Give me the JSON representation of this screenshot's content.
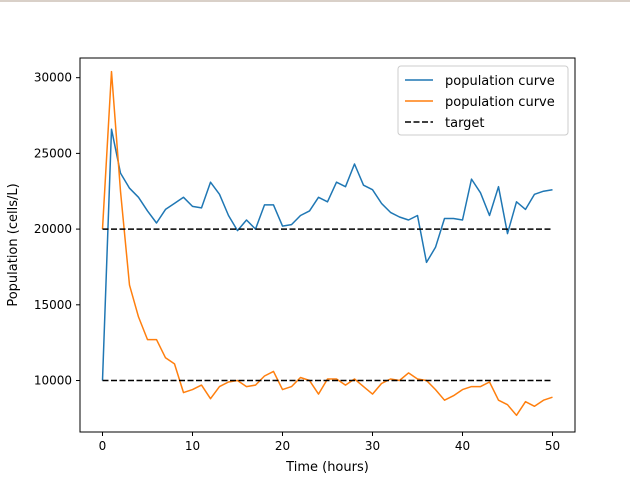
{
  "chart_data": {
    "type": "line",
    "xlabel": "Time (hours)",
    "ylabel": "Population (cells/L)",
    "xlim": [
      -2.5,
      52.5
    ],
    "ylim": [
      6600,
      31300
    ],
    "xticks": [
      0,
      10,
      20,
      30,
      40,
      50
    ],
    "xtick_labels": [
      "0",
      "10",
      "20",
      "30",
      "40",
      "50"
    ],
    "yticks": [
      10000,
      15000,
      20000,
      25000,
      30000
    ],
    "ytick_labels": [
      "10000",
      "15000",
      "20000",
      "25000",
      "30000"
    ],
    "grid": false,
    "legend": "top-right",
    "series": [
      {
        "name": "population curve",
        "color": "#1f77b4",
        "style": "solid",
        "x": [
          0,
          1,
          2,
          3,
          4,
          5,
          6,
          7,
          8,
          9,
          10,
          11,
          12,
          13,
          14,
          15,
          16,
          17,
          18,
          19,
          20,
          21,
          22,
          23,
          24,
          25,
          26,
          27,
          28,
          29,
          30,
          31,
          32,
          33,
          34,
          35,
          36,
          37,
          38,
          39,
          40,
          41,
          42,
          43,
          44,
          45,
          46,
          47,
          48,
          49,
          50
        ],
        "y": [
          10000,
          26600,
          23700,
          22700,
          22100,
          21200,
          20400,
          21300,
          21700,
          22100,
          21500,
          21400,
          23100,
          22300,
          20900,
          19900,
          20600,
          20000,
          21600,
          21600,
          20200,
          20300,
          20900,
          21200,
          22100,
          21800,
          23100,
          22800,
          24300,
          22900,
          22600,
          21700,
          21100,
          20800,
          20600,
          20900,
          17800,
          18800,
          20700,
          20700,
          20600,
          23300,
          22400,
          20900,
          22800,
          19700,
          21800,
          21300,
          22300,
          22500,
          22600
        ]
      },
      {
        "name": "population curve",
        "color": "#ff7f0e",
        "style": "solid",
        "x": [
          0,
          1,
          2,
          3,
          4,
          5,
          6,
          7,
          8,
          9,
          10,
          11,
          12,
          13,
          14,
          15,
          16,
          17,
          18,
          19,
          20,
          21,
          22,
          23,
          24,
          25,
          26,
          27,
          28,
          29,
          30,
          31,
          32,
          33,
          34,
          35,
          36,
          37,
          38,
          39,
          40,
          41,
          42,
          43,
          44,
          45,
          46,
          47,
          48,
          49,
          50
        ],
        "y": [
          20000,
          30400,
          22500,
          16300,
          14200,
          12700,
          12700,
          11500,
          11100,
          9200,
          9400,
          9700,
          8800,
          9600,
          9900,
          10000,
          9600,
          9700,
          10300,
          10600,
          9400,
          9600,
          10200,
          10000,
          9100,
          10100,
          10100,
          9700,
          10100,
          9600,
          9100,
          9800,
          10100,
          10000,
          10500,
          10100,
          10000,
          9400,
          8700,
          9000,
          9400,
          9600,
          9600,
          9900,
          8700,
          8400,
          7700,
          8600,
          8300,
          8700,
          8900
        ]
      },
      {
        "name": "target",
        "color": "#000000",
        "style": "dashed",
        "x": [
          0,
          50
        ],
        "y": [
          20000,
          20000
        ]
      },
      {
        "name": "target",
        "color": "#000000",
        "style": "dashed",
        "x": [
          0,
          50
        ],
        "y": [
          10000,
          10000
        ]
      }
    ],
    "legend_entries": [
      {
        "label": "population curve",
        "color": "#1f77b4",
        "style": "solid"
      },
      {
        "label": "population curve",
        "color": "#ff7f0e",
        "style": "solid"
      },
      {
        "label": "target",
        "color": "#000000",
        "style": "dashed"
      }
    ]
  }
}
